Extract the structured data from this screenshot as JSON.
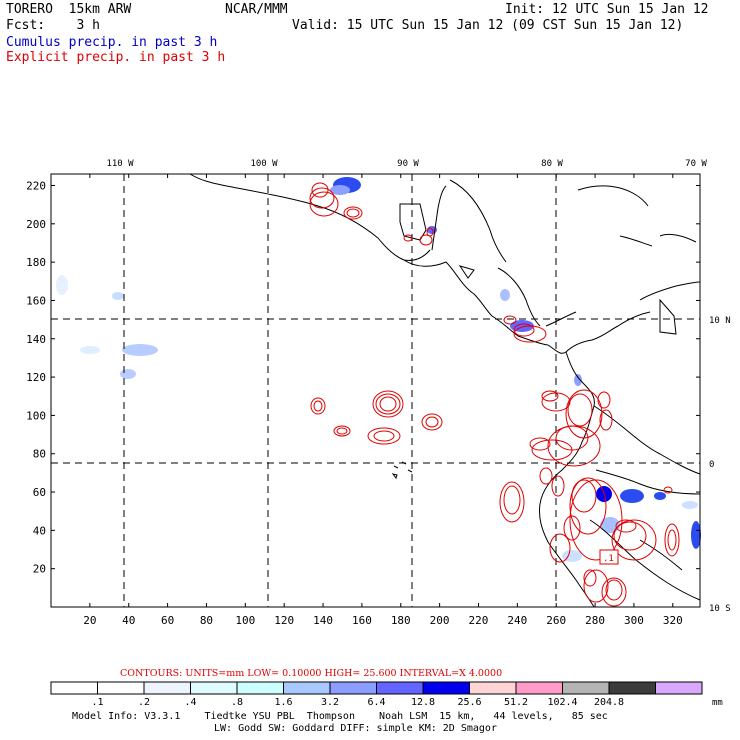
{
  "header": {
    "model": "TORERO  15km ARW",
    "org": "NCAR/MMM",
    "init": "Init: 12 UTC Sun 15 Jan 12",
    "fcst": "Fcst:    3 h",
    "valid": "Valid: 15 UTC Sun 15 Jan 12 (09 CST Sun 15 Jan 12)",
    "field1": "Cumulus precip. in past 3 h",
    "field2": "Explicit precip. in past 3 h",
    "colors": {
      "field1": "#0000c0",
      "field2": "#e00000"
    }
  },
  "map": {
    "lon_labels": [
      "110 W",
      "100 W",
      "90 W",
      "80 W",
      "70 W"
    ],
    "lat_labels": [
      "10 N",
      "0",
      "10 S"
    ],
    "x_ticks": [
      "20",
      "40",
      "60",
      "80",
      "100",
      "120",
      "140",
      "160",
      "180",
      "200",
      "220",
      "240",
      "260",
      "280",
      "300",
      "320"
    ],
    "y_ticks": [
      "20",
      "40",
      "60",
      "80",
      "100",
      "120",
      "140",
      "160",
      "180",
      "200",
      "220"
    ],
    "grid_x_range": [
      0,
      334
    ],
    "grid_y_range": [
      0,
      226
    ],
    "marker_label": ".1"
  },
  "contours": {
    "label": "CONTOURS:  UNITS=mm  LOW= 0.10000      HIGH=  25.600      INTERVAL=X  4.0000",
    "units": "mm",
    "low": 0.1,
    "high": 25.6,
    "interval_factor": 4.0
  },
  "colorbar": {
    "units": "mm",
    "thresholds": [
      ".1",
      ".2",
      ".4",
      ".8",
      "1.6",
      "3.2",
      "6.4",
      "12.8",
      "25.6",
      "51.2",
      "102.4",
      "204.8"
    ],
    "colors": [
      "#ffffff",
      "#ffffff",
      "#eef4ff",
      "#e0fbff",
      "#ccffff",
      "#a8c8ff",
      "#8c9cff",
      "#6464ff",
      "#0000ee",
      "#ffd4d4",
      "#ff9cc8",
      "#b4b4b4",
      "#3c3c3c",
      "#d8a8ff"
    ]
  },
  "footer": {
    "line1": "Model Info: V3.3.1    Tiedtke YSU PBL  Thompson    Noah LSM  15 km,   44 levels,   85 sec",
    "line2": "LW: Godd SW: Goddard DIFF: simple KM: 2D Smagor"
  }
}
